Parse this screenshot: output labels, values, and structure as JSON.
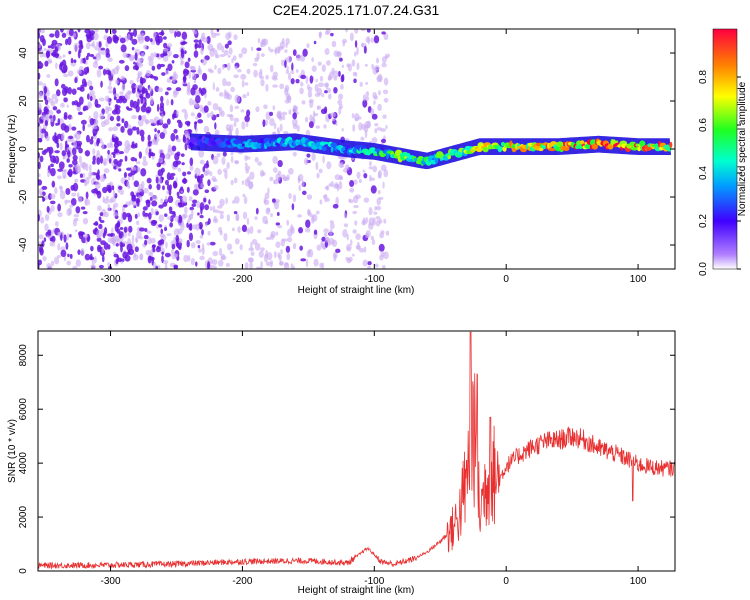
{
  "figure_title": "C2E4.2025.171.07.24.G31",
  "colors": {
    "snr_line": "#e83030",
    "spectrum_dense": "#5a10d0",
    "spectrum_faint": "#c8a8f0"
  },
  "chart_data": [
    {
      "type": "heatmap",
      "title": "C2E4.2025.171.07.24.G31",
      "xlabel": "Height of straight line (km)",
      "ylabel": "Frequency (Hz)",
      "xlim": [
        -355,
        128
      ],
      "ylim": [
        -50,
        50
      ],
      "xticks": [
        -300,
        -200,
        -100,
        0,
        100
      ],
      "yticks": [
        -40,
        -20,
        0,
        20,
        40
      ],
      "colorbar": {
        "label": "Normalized spectral amplitude",
        "range": [
          0,
          1
        ],
        "ticks": [
          "0.0",
          "0.2",
          "0.4",
          "0.6",
          "0.8"
        ],
        "colormap": "rainbow (violet-blue-cyan-green-yellow-red)"
      },
      "signal_track": [
        {
          "x": -240,
          "freq": 3,
          "amp": 0.2
        },
        {
          "x": -200,
          "freq": 2,
          "amp": 0.35
        },
        {
          "x": -160,
          "freq": 3,
          "amp": 0.4
        },
        {
          "x": -120,
          "freq": 0,
          "amp": 0.4
        },
        {
          "x": -100,
          "freq": -1,
          "amp": 0.5
        },
        {
          "x": -80,
          "freq": -3,
          "amp": 0.6
        },
        {
          "x": -60,
          "freq": -5,
          "amp": 0.55
        },
        {
          "x": -40,
          "freq": -2,
          "amp": 0.6
        },
        {
          "x": -20,
          "freq": 1,
          "amp": 0.75
        },
        {
          "x": 0,
          "freq": 1,
          "amp": 0.8
        },
        {
          "x": 40,
          "freq": 1,
          "amp": 0.85
        },
        {
          "x": 70,
          "freq": 2,
          "amp": 1.0
        },
        {
          "x": 100,
          "freq": 1,
          "amp": 0.9
        },
        {
          "x": 125,
          "freq": 1,
          "amp": 0.85
        }
      ],
      "noise_region_x": [
        -355,
        -90
      ]
    },
    {
      "type": "line",
      "xlabel": "Height of straight line (km)",
      "ylabel": "SNR (10 * v/v)",
      "xlim": [
        -355,
        128
      ],
      "ylim": [
        0,
        8900
      ],
      "xticks": [
        -300,
        -200,
        -100,
        0,
        100
      ],
      "yticks": [
        0,
        2000,
        4000,
        6000,
        8000
      ],
      "x": [
        -355,
        -300,
        -250,
        -200,
        -150,
        -120,
        -105,
        -95,
        -85,
        -70,
        -60,
        -50,
        -40,
        -35,
        -30,
        -25,
        -20,
        -15,
        -10,
        -5,
        0,
        10,
        20,
        30,
        40,
        50,
        60,
        70,
        80,
        90,
        100,
        110,
        120,
        128
      ],
      "values": [
        200,
        220,
        260,
        350,
        380,
        300,
        850,
        350,
        250,
        450,
        700,
        1100,
        1600,
        2200,
        3400,
        5500,
        2200,
        3300,
        3600,
        3400,
        3900,
        4300,
        4600,
        4800,
        4850,
        5000,
        4850,
        4550,
        4400,
        4200,
        3950,
        3850,
        3800,
        3800
      ],
      "spikes": [
        {
          "x": -27,
          "value": 8850
        },
        {
          "x": -22,
          "value": 7300
        },
        {
          "x": -12,
          "value": 5700
        },
        {
          "x": -30,
          "value": 4100
        },
        {
          "x": 96,
          "value": 2600
        }
      ]
    }
  ]
}
